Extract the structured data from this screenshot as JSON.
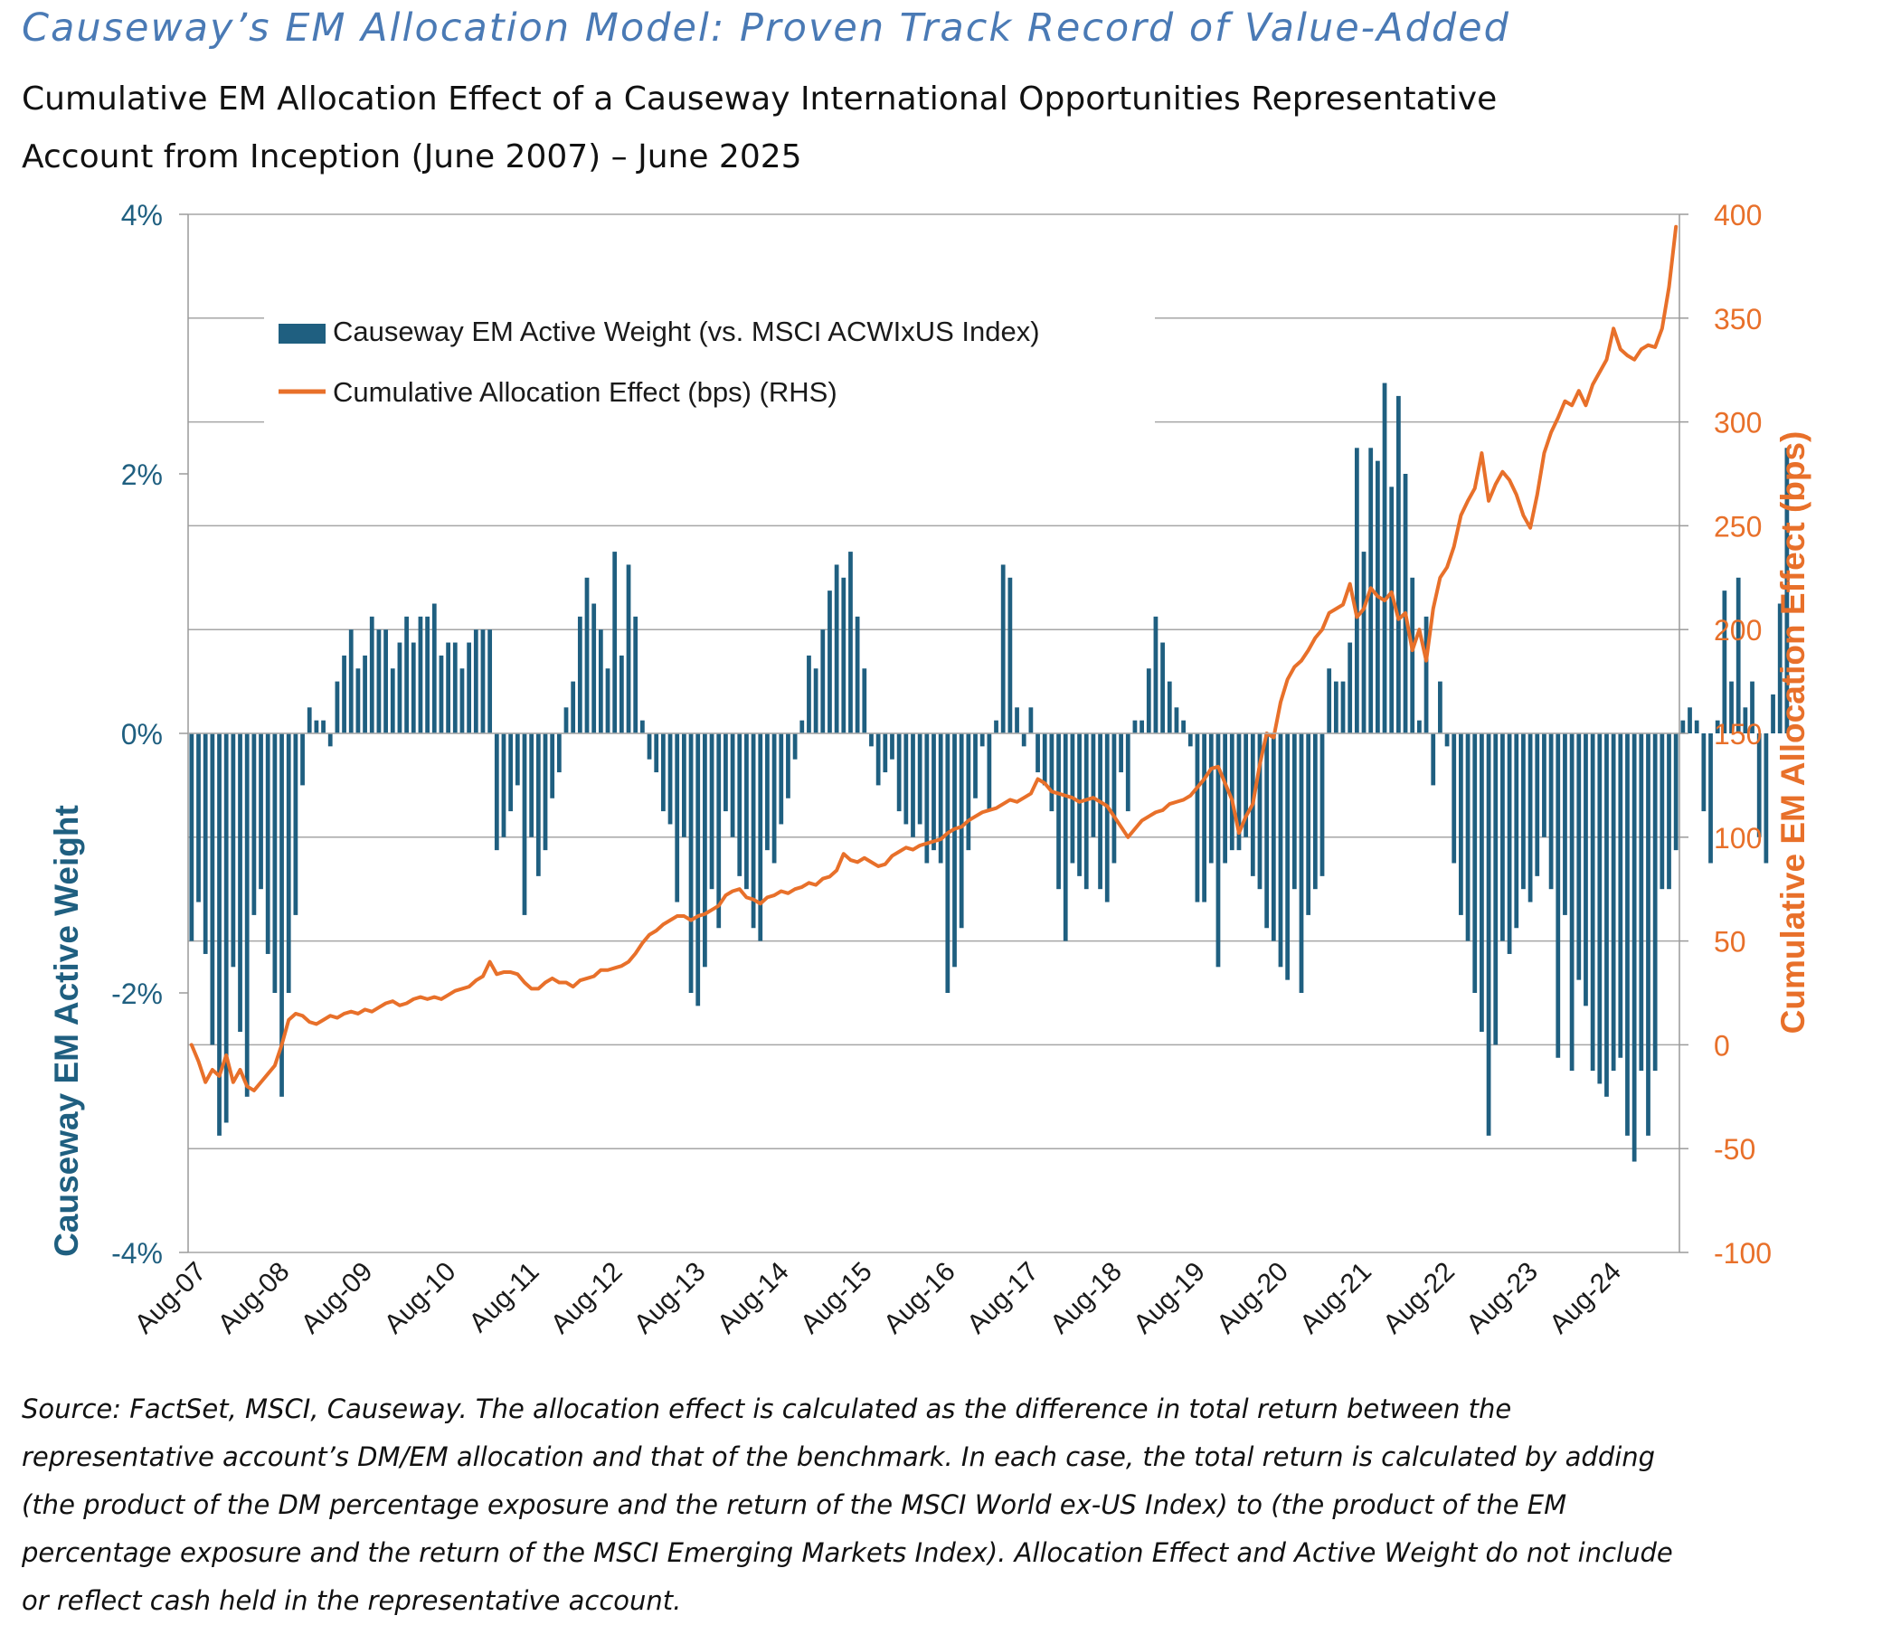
{
  "header": {
    "title": "Causeway’s EM Allocation Model: Proven Track Record of Value-Added",
    "subtitle": "Cumulative EM Allocation Effect of a Causeway International Opportunities Representative Account from Inception (June 2007) – June 2025"
  },
  "footnote": "Source: FactSet, MSCI, Causeway. The allocation effect is calculated as the difference in total return between the representative account’s DM/EM allocation and that of the benchmark. In each case, the total return is calculated by adding (the product of the DM percentage exposure and the return of the MSCI World ex-US Index) to (the product of the EM percentage exposure and the return of the MSCI Emerging Markets Index). Allocation Effect and Active Weight do not include or reflect cash held in the representative account.",
  "colors": {
    "bar": "#1f5f80",
    "line": "#e8702a",
    "left_axis": "#1f5f80",
    "right_axis": "#e8702a",
    "title": "#4a7ab5"
  },
  "chart_data": {
    "type": "bar+line",
    "title": "Cumulative EM Allocation Effect of a Causeway International Opportunities Representative Account from Inception (June 2007) – June 2025",
    "ylabel_left": "Causeway EM Active Weight",
    "ylabel_right": "Cumulative EM Allocation Effect (bps)",
    "y_left": {
      "min": -4,
      "max": 4,
      "ticks": [
        -4,
        -2,
        0,
        2,
        4
      ],
      "tick_labels": [
        "-4%",
        "-2%",
        "0%",
        "2%",
        "4%"
      ]
    },
    "y_right": {
      "min": -100,
      "max": 400,
      "ticks": [
        -100,
        -50,
        0,
        50,
        100,
        150,
        200,
        250,
        300,
        350,
        400
      ],
      "tick_labels": [
        "-100",
        "-50",
        "0",
        "50",
        "100",
        "150",
        "200",
        "250",
        "300",
        "350",
        "400"
      ]
    },
    "x_ticks": [
      "Aug-07",
      "Aug-08",
      "Aug-09",
      "Aug-10",
      "Aug-11",
      "Aug-12",
      "Aug-13",
      "Aug-14",
      "Aug-15",
      "Aug-16",
      "Aug-17",
      "Aug-18",
      "Aug-19",
      "Aug-20",
      "Aug-21",
      "Aug-22",
      "Aug-23",
      "Aug-24"
    ],
    "x_start": "Jul-07",
    "x_end": "Jun-25",
    "grid": true,
    "legend_position": "top-left",
    "series": [
      {
        "name": "Causeway EM Active Weight (vs. MSCI ACWIxUS Index)",
        "type": "bar",
        "axis": "left",
        "unit": "%",
        "values": [
          -1.6,
          -1.3,
          -1.7,
          -2.4,
          -3.1,
          -3.0,
          -1.8,
          -2.3,
          -2.8,
          -1.4,
          -1.2,
          -1.7,
          -2.0,
          -2.8,
          -2.0,
          -1.4,
          -0.4,
          0.2,
          0.1,
          0.1,
          -0.1,
          0.4,
          0.6,
          0.8,
          0.5,
          0.6,
          0.9,
          0.8,
          0.8,
          0.5,
          0.7,
          0.9,
          0.7,
          0.9,
          0.9,
          1.0,
          0.6,
          0.7,
          0.7,
          0.5,
          0.7,
          0.8,
          0.8,
          0.8,
          -0.9,
          -0.8,
          -0.6,
          -0.4,
          -1.4,
          -0.8,
          -1.1,
          -0.9,
          -0.5,
          -0.3,
          0.2,
          0.4,
          0.9,
          1.2,
          1.0,
          0.8,
          0.5,
          1.4,
          0.6,
          1.3,
          0.9,
          0.1,
          -0.2,
          -0.3,
          -0.6,
          -0.7,
          -1.3,
          -0.8,
          -2.0,
          -2.1,
          -1.8,
          -1.2,
          -1.5,
          -0.6,
          -0.8,
          -1.1,
          -1.2,
          -1.5,
          -1.6,
          -0.9,
          -1.0,
          -0.7,
          -0.5,
          -0.2,
          0.1,
          0.6,
          0.5,
          0.8,
          1.1,
          1.3,
          1.2,
          1.4,
          0.9,
          0.5,
          -0.1,
          -0.4,
          -0.3,
          -0.2,
          -0.6,
          -0.7,
          -0.8,
          -0.7,
          -1.0,
          -0.9,
          -1.0,
          -2.0,
          -1.8,
          -1.5,
          -0.9,
          -0.5,
          -0.1,
          -0.6,
          0.1,
          1.3,
          1.2,
          0.2,
          -0.1,
          0.2,
          -0.3,
          -0.4,
          -0.6,
          -1.2,
          -1.6,
          -1.0,
          -1.1,
          -1.2,
          -0.8,
          -1.2,
          -1.3,
          -1.0,
          -0.3,
          -0.6,
          0.1,
          0.1,
          0.5,
          0.9,
          0.7,
          0.4,
          0.2,
          0.1,
          -0.1,
          -1.3,
          -1.3,
          -1.0,
          -1.8,
          -1.0,
          -0.9,
          -0.9,
          -0.8,
          -1.1,
          -1.2,
          -1.5,
          -1.6,
          -1.8,
          -1.9,
          -1.2,
          -2.0,
          -1.4,
          -1.2,
          -1.1,
          0.5,
          0.4,
          0.4,
          0.7,
          2.2,
          1.4,
          2.2,
          2.1,
          2.7,
          1.9,
          2.6,
          2.0,
          1.2,
          0.1,
          0.9,
          -0.4,
          0.4,
          -0.1,
          -1.0,
          -1.4,
          -1.6,
          -2.0,
          -2.3,
          -3.1,
          -2.4,
          -1.6,
          -1.7,
          -1.5,
          -1.2,
          -1.3,
          -1.1,
          -0.8,
          -1.2,
          -2.5,
          -1.4,
          -2.6,
          -1.9,
          -2.1,
          -2.6,
          -2.7,
          -2.8,
          -2.6,
          -2.5,
          -3.1,
          -3.3,
          -2.6,
          -3.1,
          -2.6,
          -1.2,
          -1.2,
          -0.9,
          0.1,
          0.2,
          0.1,
          -0.6,
          -1.0,
          0.1,
          1.1,
          0.4,
          1.2,
          0.2,
          0.4,
          -0.8,
          -1.0,
          0.3,
          1.0,
          2.2
        ]
      },
      {
        "name": "Cumulative Allocation Effect (bps) (RHS)",
        "type": "line",
        "axis": "right",
        "unit": "bps",
        "values": [
          0,
          -8,
          -18,
          -12,
          -15,
          -5,
          -18,
          -12,
          -20,
          -22,
          -18,
          -14,
          -10,
          0,
          12,
          15,
          14,
          11,
          10,
          12,
          14,
          13,
          15,
          16,
          15,
          17,
          16,
          18,
          20,
          21,
          19,
          20,
          22,
          23,
          22,
          23,
          22,
          24,
          26,
          27,
          28,
          31,
          33,
          40,
          34,
          35,
          35,
          34,
          30,
          27,
          27,
          30,
          32,
          30,
          30,
          28,
          31,
          32,
          33,
          36,
          36,
          37,
          38,
          40,
          44,
          49,
          53,
          55,
          58,
          60,
          62,
          62,
          60,
          62,
          63,
          65,
          67,
          72,
          74,
          75,
          71,
          70,
          68,
          71,
          72,
          74,
          73,
          75,
          76,
          78,
          77,
          80,
          81,
          84,
          92,
          89,
          88,
          90,
          88,
          86,
          87,
          91,
          93,
          95,
          94,
          96,
          97,
          98,
          99,
          102,
          104,
          105,
          108,
          110,
          112,
          113,
          114,
          116,
          118,
          117,
          119,
          121,
          128,
          126,
          122,
          121,
          120,
          119,
          117,
          118,
          119,
          117,
          115,
          110,
          105,
          100,
          104,
          108,
          110,
          112,
          113,
          116,
          117,
          118,
          120,
          124,
          128,
          133,
          134,
          126,
          118,
          102,
          110,
          116,
          135,
          150,
          148,
          165,
          176,
          182,
          185,
          190,
          196,
          200,
          208,
          210,
          212,
          222,
          206,
          210,
          220,
          216,
          214,
          218,
          205,
          208,
          190,
          200,
          185,
          210,
          225,
          230,
          240,
          255,
          262,
          268,
          285,
          262,
          270,
          276,
          272,
          265,
          255,
          249,
          265,
          285,
          295,
          302,
          310,
          308,
          315,
          308,
          318,
          324,
          330,
          345,
          335,
          332,
          330,
          335,
          337,
          336,
          345,
          365,
          394
        ]
      }
    ]
  }
}
